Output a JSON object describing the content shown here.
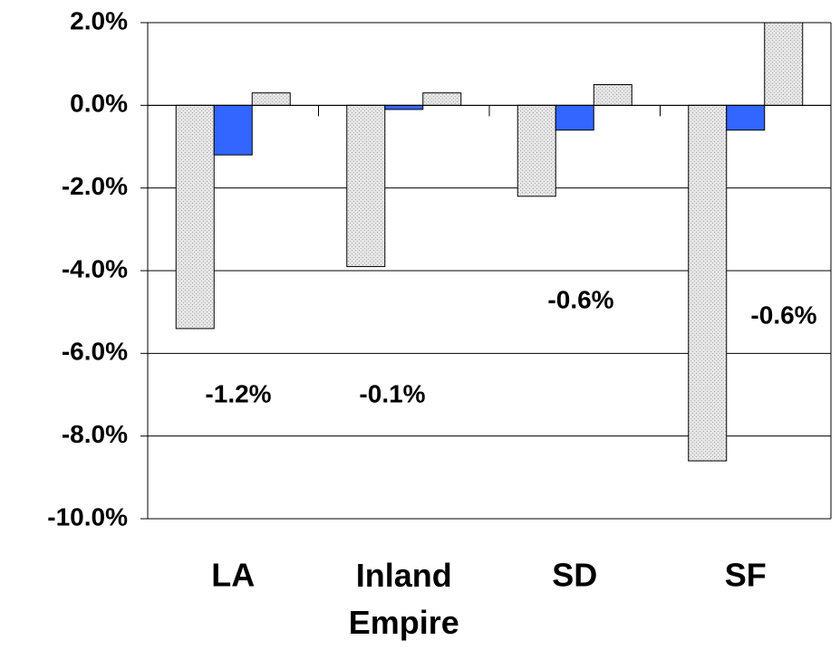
{
  "chart_data": {
    "type": "bar",
    "categories": [
      "LA",
      "Inland Empire",
      "SD",
      "SF"
    ],
    "series": [
      {
        "color": "#d9d9d9",
        "values": [
          -5.4,
          -3.9,
          -2.2,
          -8.6
        ]
      },
      {
        "color": "#3366ff",
        "values": [
          -1.2,
          -0.1,
          -0.6,
          -0.6
        ],
        "value_labels": [
          "-1.2%",
          "-0.1%",
          "-0.6%",
          "-0.6%"
        ]
      },
      {
        "color": "#d9d9d9",
        "values": [
          0.3,
          0.3,
          0.5,
          2.0
        ]
      }
    ],
    "ylim": [
      -10,
      2
    ],
    "yticks": [
      {
        "value": 2,
        "label": "2.0%"
      },
      {
        "value": 0,
        "label": "0.0%"
      },
      {
        "value": -2,
        "label": "-2.0%"
      },
      {
        "value": -4,
        "label": "-4.0%"
      },
      {
        "value": -6,
        "label": "-6.0%"
      },
      {
        "value": -8,
        "label": "-8.0%"
      },
      {
        "value": -10,
        "label": "-10.0%"
      }
    ],
    "grid": true
  }
}
